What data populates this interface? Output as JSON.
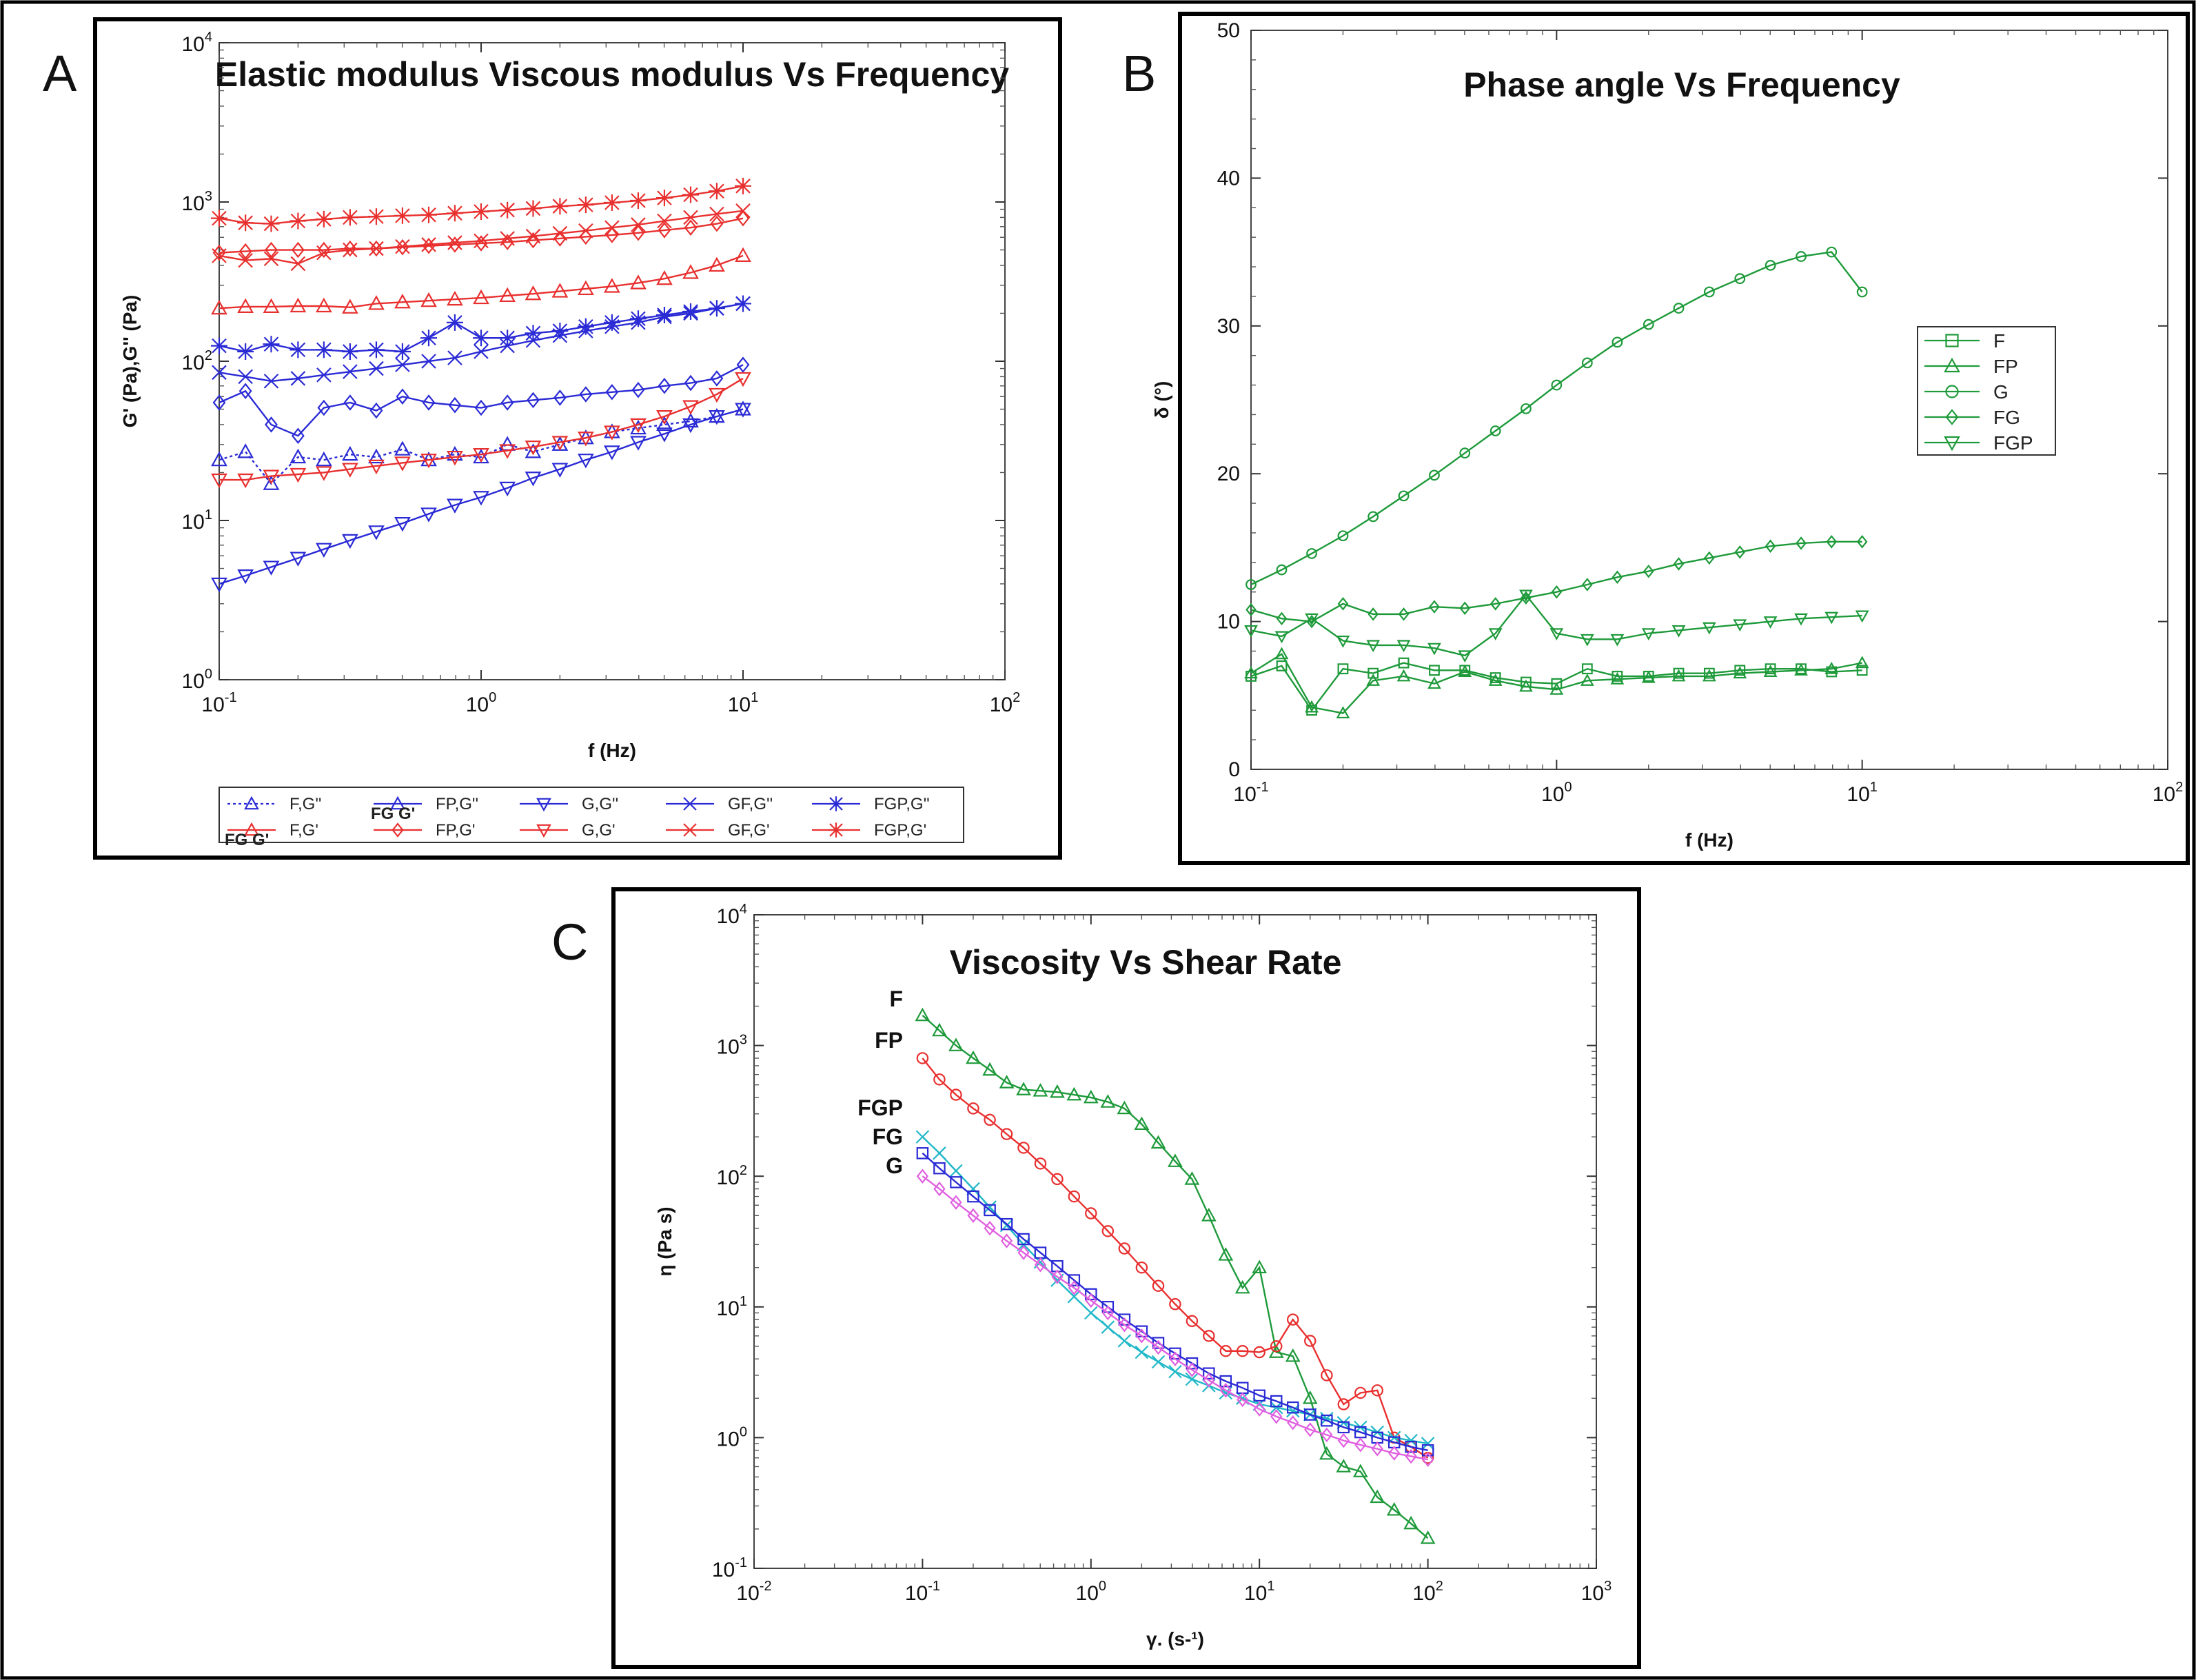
{
  "panels": {
    "A": {
      "letter": "A",
      "title": "Elastic modulus Viscous modulus Vs Frequency"
    },
    "B": {
      "letter": "B",
      "title": "Phase angle Vs Frequency"
    },
    "C": {
      "letter": "C",
      "title": "Viscosity Vs Shear Rate"
    }
  },
  "colors": {
    "red": "#e8302f",
    "blue": "#2b2bd6",
    "green": "#1e9a3a",
    "cyan": "#22b8c8",
    "magenta": "#e060e0",
    "frame": "#000000"
  },
  "chart_data": [
    {
      "id": "A",
      "type": "line",
      "title": "Elastic modulus Viscous modulus Vs Frequency",
      "xlabel": "f (Hz)",
      "ylabel": "G' (Pa),G'' (Pa)",
      "xscale": "log",
      "yscale": "log",
      "xlim": [
        0.1,
        100
      ],
      "ylim": [
        1,
        10000
      ],
      "xticks": [
        {
          "b": "10",
          "e": "-1"
        },
        {
          "b": "10",
          "e": "0"
        },
        {
          "b": "10",
          "e": "1"
        },
        {
          "b": "10",
          "e": "2"
        }
      ],
      "yticks": [
        {
          "b": "10",
          "e": "0"
        },
        {
          "b": "10",
          "e": "1"
        },
        {
          "b": "10",
          "e": "2"
        },
        {
          "b": "10",
          "e": "3"
        },
        {
          "b": "10",
          "e": "4"
        }
      ],
      "x": [
        0.1,
        0.126,
        0.158,
        0.2,
        0.251,
        0.316,
        0.398,
        0.501,
        0.631,
        0.794,
        1.0,
        1.26,
        1.58,
        2.0,
        2.51,
        3.16,
        3.98,
        5.01,
        6.31,
        7.94,
        10.0
      ],
      "series": [
        {
          "name": "FGP,G'",
          "color": "red",
          "marker": "star",
          "values": [
            790,
            740,
            730,
            760,
            780,
            800,
            810,
            820,
            830,
            850,
            870,
            890,
            910,
            940,
            960,
            990,
            1020,
            1060,
            1110,
            1170,
            1260
          ]
        },
        {
          "name": "FP,G'",
          "color": "red",
          "marker": "diamond",
          "values": [
            480,
            490,
            500,
            500,
            500,
            510,
            510,
            520,
            530,
            540,
            550,
            560,
            575,
            590,
            605,
            620,
            640,
            665,
            690,
            730,
            790
          ]
        },
        {
          "name": "GF,G'",
          "color": "red",
          "marker": "x",
          "values": [
            460,
            430,
            440,
            410,
            480,
            500,
            510,
            525,
            540,
            555,
            570,
            590,
            610,
            635,
            660,
            690,
            720,
            760,
            800,
            840,
            880
          ]
        },
        {
          "name": "F,G'",
          "color": "red",
          "marker": "triangle",
          "values": [
            215,
            220,
            220,
            222,
            222,
            218,
            230,
            235,
            240,
            245,
            250,
            258,
            265,
            275,
            285,
            295,
            310,
            330,
            360,
            400,
            460
          ]
        },
        {
          "name": "FGP,G''",
          "color": "blue",
          "marker": "star",
          "values": [
            125,
            115,
            128,
            118,
            118,
            115,
            118,
            115,
            140,
            175,
            140,
            140,
            150,
            155,
            165,
            175,
            185,
            195,
            205,
            215,
            230
          ]
        },
        {
          "name": "GF,G''",
          "color": "blue",
          "marker": "x",
          "values": [
            85,
            80,
            75,
            78,
            82,
            86,
            90,
            95,
            100,
            105,
            115,
            125,
            135,
            145,
            155,
            165,
            175,
            190,
            200,
            215,
            230
          ]
        },
        {
          "name": "FP,G''",
          "color": "blue",
          "marker": "diamond",
          "values": [
            55,
            65,
            40,
            34,
            51,
            55,
            49,
            60,
            55,
            53,
            51,
            55,
            57,
            59,
            62,
            64,
            66,
            70,
            73,
            78,
            95
          ]
        },
        {
          "name": "F,G''",
          "color": "blue",
          "marker": "triangle",
          "dotted": true,
          "values": [
            24,
            27,
            17,
            25,
            24,
            26,
            25,
            28,
            24,
            26,
            25,
            30,
            27,
            30,
            33,
            36,
            38,
            40,
            42,
            45,
            50
          ]
        },
        {
          "name": "G,G'",
          "color": "red",
          "marker": "tri-down",
          "values": [
            18,
            18,
            19,
            19.5,
            20,
            21,
            22,
            23,
            24,
            25,
            26,
            27.5,
            29,
            31,
            33,
            36,
            40,
            45,
            52,
            62,
            78
          ]
        },
        {
          "name": "G,G''",
          "color": "blue",
          "marker": "tri-down",
          "values": [
            4.0,
            4.5,
            5.1,
            5.8,
            6.6,
            7.5,
            8.5,
            9.6,
            11,
            12.5,
            14,
            16,
            18.5,
            21,
            24,
            27,
            31,
            35,
            40,
            45,
            50
          ]
        }
      ],
      "legend": {
        "placement": "bottom",
        "items": [
          {
            "label": "F,G''",
            "color": "blue",
            "marker": "triangle",
            "dotted": true
          },
          {
            "label": "F,G'",
            "color": "red",
            "marker": "triangle",
            "prefix": "FG G'"
          },
          {
            "label": "FP,G''",
            "color": "blue",
            "marker": "triangle",
            "prefix": "FG G'"
          },
          {
            "label": "FP,G'",
            "color": "red",
            "marker": "diamond"
          },
          {
            "label": "G,G''",
            "color": "blue",
            "marker": "tri-down"
          },
          {
            "label": "G,G'",
            "color": "red",
            "marker": "tri-down"
          },
          {
            "label": "GF,G''",
            "color": "blue",
            "marker": "x"
          },
          {
            "label": "GF,G'",
            "color": "red",
            "marker": "x"
          },
          {
            "label": "FGP,G''",
            "color": "blue",
            "marker": "star"
          },
          {
            "label": "FGP,G'",
            "color": "red",
            "marker": "star"
          }
        ]
      }
    },
    {
      "id": "B",
      "type": "line",
      "title": "Phase angle Vs Frequency",
      "xlabel": "f (Hz)",
      "ylabel": "δ (°)",
      "xscale": "log",
      "yscale": "linear",
      "xlim": [
        0.1,
        100
      ],
      "ylim": [
        0,
        50
      ],
      "xticks": [
        {
          "b": "10",
          "e": "-1"
        },
        {
          "b": "10",
          "e": "0"
        },
        {
          "b": "10",
          "e": "1"
        },
        {
          "b": "10",
          "e": "2"
        }
      ],
      "yticks": [
        "0",
        "10",
        "20",
        "30",
        "40",
        "50"
      ],
      "x": [
        0.1,
        0.126,
        0.158,
        0.2,
        0.251,
        0.316,
        0.398,
        0.501,
        0.631,
        0.794,
        1.0,
        1.26,
        1.58,
        2.0,
        2.51,
        3.16,
        3.98,
        5.01,
        6.31,
        7.94,
        10.0
      ],
      "series": [
        {
          "name": "G",
          "color": "green",
          "marker": "circle",
          "values": [
            12.5,
            13.5,
            14.6,
            15.8,
            17.1,
            18.5,
            19.9,
            21.4,
            22.9,
            24.4,
            26.0,
            27.5,
            28.9,
            30.1,
            31.2,
            32.3,
            33.2,
            34.1,
            34.7,
            35.0,
            32.3
          ]
        },
        {
          "name": "FG",
          "color": "green",
          "marker": "diamond",
          "values": [
            10.8,
            10.2,
            10.0,
            11.2,
            10.5,
            10.5,
            11.0,
            10.9,
            11.2,
            11.6,
            12.0,
            12.5,
            13.0,
            13.4,
            13.9,
            14.3,
            14.7,
            15.1,
            15.3,
            15.4,
            15.4
          ]
        },
        {
          "name": "FGP",
          "color": "green",
          "marker": "tri-down",
          "values": [
            9.4,
            9.0,
            10.2,
            8.7,
            8.4,
            8.4,
            8.2,
            7.7,
            9.2,
            11.8,
            9.2,
            8.8,
            8.8,
            9.2,
            9.4,
            9.6,
            9.8,
            10.0,
            10.2,
            10.3,
            10.4
          ]
        },
        {
          "name": "F",
          "color": "green",
          "marker": "square",
          "values": [
            6.3,
            7.0,
            4.0,
            6.8,
            6.5,
            7.2,
            6.7,
            6.7,
            6.2,
            5.9,
            5.8,
            6.8,
            6.3,
            6.3,
            6.5,
            6.5,
            6.7,
            6.8,
            6.8,
            6.6,
            6.7
          ]
        },
        {
          "name": "FP",
          "color": "green",
          "marker": "triangle",
          "values": [
            6.5,
            7.8,
            4.2,
            3.8,
            6.0,
            6.3,
            5.8,
            6.6,
            6.0,
            5.6,
            5.4,
            6.0,
            6.1,
            6.2,
            6.3,
            6.3,
            6.5,
            6.6,
            6.7,
            6.8,
            7.2
          ]
        }
      ],
      "legend": {
        "placement": "right",
        "items": [
          {
            "label": "F",
            "marker": "square"
          },
          {
            "label": "FP",
            "marker": "triangle"
          },
          {
            "label": "G",
            "marker": "circle"
          },
          {
            "label": "FG",
            "marker": "diamond"
          },
          {
            "label": "FGP",
            "marker": "tri-down"
          }
        ]
      }
    },
    {
      "id": "C",
      "type": "line",
      "title": "Viscosity Vs Shear Rate",
      "xlabel": "γ. (s-¹)",
      "ylabel": "η (Pa s)",
      "xscale": "log",
      "yscale": "log",
      "xlim": [
        0.01,
        1000
      ],
      "ylim": [
        0.1,
        10000
      ],
      "xticks": [
        {
          "b": "10",
          "e": "-2"
        },
        {
          "b": "10",
          "e": "-1"
        },
        {
          "b": "10",
          "e": "0"
        },
        {
          "b": "10",
          "e": "1"
        },
        {
          "b": "10",
          "e": "2"
        },
        {
          "b": "10",
          "e": "3"
        }
      ],
      "yticks": [
        {
          "b": "10",
          "e": "-1"
        },
        {
          "b": "10",
          "e": "0"
        },
        {
          "b": "10",
          "e": "1"
        },
        {
          "b": "10",
          "e": "2"
        },
        {
          "b": "10",
          "e": "3"
        },
        {
          "b": "10",
          "e": "4"
        }
      ],
      "x": [
        0.1,
        0.126,
        0.158,
        0.2,
        0.251,
        0.316,
        0.398,
        0.501,
        0.631,
        0.794,
        1.0,
        1.26,
        1.58,
        2.0,
        2.51,
        3.16,
        3.98,
        5.01,
        6.31,
        7.94,
        10.0,
        12.6,
        15.8,
        20.0,
        25.1,
        31.6,
        39.8,
        50.1,
        63.1,
        79.4,
        100
      ],
      "series": [
        {
          "name": "F",
          "color": "green",
          "marker": "triangle",
          "values": [
            1700,
            1300,
            1000,
            800,
            650,
            520,
            460,
            450,
            440,
            420,
            400,
            370,
            330,
            250,
            180,
            130,
            95,
            50,
            25,
            14,
            20,
            4.5,
            4.2,
            2.0,
            0.75,
            0.6,
            0.55,
            0.35,
            0.28,
            0.22,
            0.17
          ]
        },
        {
          "name": "FP",
          "color": "red",
          "marker": "circle",
          "values": [
            800,
            550,
            420,
            330,
            270,
            210,
            165,
            125,
            95,
            70,
            52,
            38,
            28,
            20,
            14.5,
            10.5,
            7.8,
            6.0,
            4.6,
            4.6,
            4.5,
            5.0,
            8.0,
            5.5,
            3.0,
            1.8,
            2.2,
            2.3,
            1.0,
            0.85,
            0.7
          ]
        },
        {
          "name": "FGP",
          "color": "cyan",
          "marker": "x",
          "values": [
            200,
            150,
            110,
            80,
            58,
            42,
            30,
            22,
            16,
            12,
            9.0,
            7.0,
            5.5,
            4.5,
            3.8,
            3.2,
            2.8,
            2.5,
            2.2,
            2.0,
            1.8,
            1.7,
            1.6,
            1.5,
            1.4,
            1.3,
            1.2,
            1.1,
            1.0,
            0.95,
            0.9
          ]
        },
        {
          "name": "FG",
          "color": "blue",
          "marker": "square",
          "values": [
            150,
            115,
            90,
            70,
            55,
            43,
            33,
            26,
            20.5,
            16,
            12.5,
            10,
            8.0,
            6.5,
            5.3,
            4.4,
            3.7,
            3.1,
            2.7,
            2.4,
            2.1,
            1.9,
            1.7,
            1.5,
            1.35,
            1.2,
            1.1,
            1.0,
            0.92,
            0.85,
            0.8
          ]
        },
        {
          "name": "G",
          "color": "magenta",
          "marker": "diamond",
          "values": [
            100,
            80,
            63,
            50,
            40,
            32,
            26,
            21,
            17,
            14,
            11.2,
            9.0,
            7.3,
            6.0,
            4.9,
            4.0,
            3.3,
            2.75,
            2.3,
            1.95,
            1.65,
            1.45,
            1.3,
            1.15,
            1.05,
            0.95,
            0.88,
            0.82,
            0.76,
            0.72,
            0.68
          ]
        }
      ],
      "curve_labels": [
        "F",
        "FP",
        "FGP",
        "FG",
        "G"
      ]
    }
  ]
}
